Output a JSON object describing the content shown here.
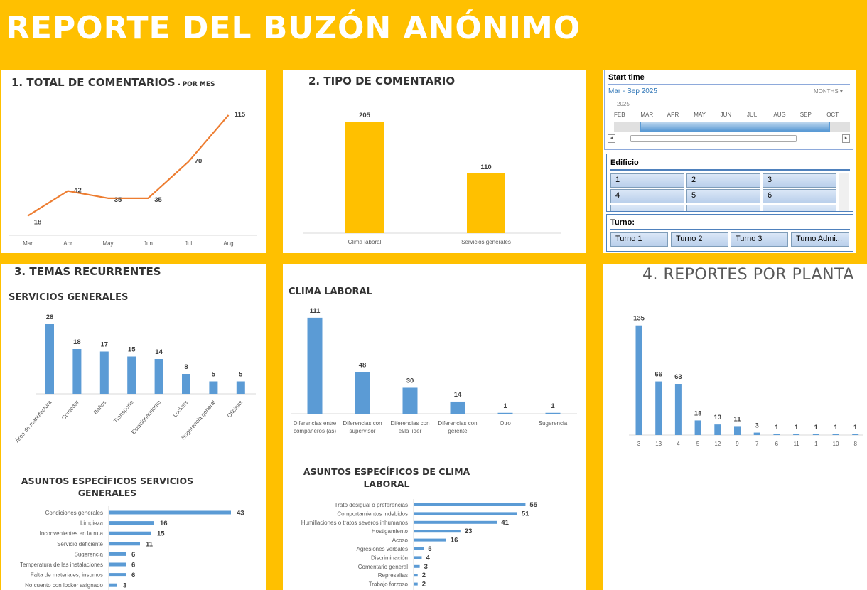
{
  "header": {
    "title": "REPORTE DEL BUZÓN ANÓNIMO"
  },
  "sections": {
    "s1_title": "1. TOTAL DE COMENTARIOS",
    "s1_sub": " - POR MES",
    "s2_title": "2. TIPO DE COMENTARIO",
    "s3_title": "3. TEMAS RECURRENTES",
    "s3_sub1": "SERVICIOS GENERALES",
    "s3_sub2": "CLIMA LABORAL",
    "s4_title": "4. REPORTES POR PLANTA",
    "s5_title1": "ASUNTOS ESPECÍFICOS SERVICIOS",
    "s5_title2": "GENERALES",
    "s6_title1": "ASUNTOS ESPECÍFICOS DE CLIMA",
    "s6_title2": "LABORAL"
  },
  "slicers": {
    "timeline": {
      "title": "Start time",
      "range": "Mar - Sep 2025",
      "level": "MONTHS",
      "year": "2025",
      "months": [
        "FEB",
        "MAR",
        "APR",
        "MAY",
        "JUN",
        "JUL",
        "AUG",
        "SEP",
        "OCT"
      ]
    },
    "edificio": {
      "title": "Edificio",
      "items": [
        "1",
        "2",
        "3",
        "4",
        "5",
        "6"
      ]
    },
    "turno": {
      "title": "Turno:",
      "items": [
        "Turno 1",
        "Turno 2",
        "Turno 3",
        "Turno Admi..."
      ]
    }
  },
  "colors": {
    "accent": "#ffc000",
    "line": "#ed7d31",
    "bar_yellow": "#ffc000",
    "bar_blue": "#5b9bd5"
  },
  "chart_data": [
    {
      "id": "monthly",
      "type": "line",
      "title": "1. TOTAL DE COMENTARIOS - POR MES",
      "categories": [
        "Mar",
        "Apr",
        "May",
        "Jun",
        "Jul",
        "Aug"
      ],
      "values": [
        18,
        42,
        35,
        35,
        70,
        115
      ],
      "ylim": [
        0,
        130
      ]
    },
    {
      "id": "tipo",
      "type": "bar",
      "title": "2. TIPO DE COMENTARIO",
      "categories": [
        "Clima laboral",
        "Servicios generales"
      ],
      "values": [
        205,
        110
      ],
      "ylim": [
        0,
        230
      ]
    },
    {
      "id": "servicios",
      "type": "bar",
      "title": "SERVICIOS GENERALES",
      "categories": [
        "Área de manufactura",
        "Comedor",
        "Baños",
        "Transporte",
        "Estacionamiento",
        "Lockers",
        "Sugerencia general",
        "Oficinas"
      ],
      "values": [
        28,
        18,
        17,
        15,
        14,
        8,
        5,
        5
      ],
      "ylim": [
        0,
        30
      ]
    },
    {
      "id": "clima",
      "type": "bar",
      "title": "CLIMA LABORAL",
      "categories": [
        [
          "Diferencias entre",
          "compañeros (as)"
        ],
        [
          "Diferencias con",
          "supervisor"
        ],
        [
          "Diferencias con",
          "el/la líder"
        ],
        [
          "Diferencias con",
          "gerente"
        ],
        [
          "Otro"
        ],
        [
          "Sugerencia"
        ]
      ],
      "values": [
        111,
        48,
        30,
        14,
        1,
        1
      ],
      "ylim": [
        0,
        115
      ]
    },
    {
      "id": "planta",
      "type": "bar",
      "title": "4. REPORTES POR PLANTA",
      "categories": [
        "3",
        "13",
        "4",
        "5",
        "12",
        "9",
        "7",
        "6",
        "11",
        "1",
        "10",
        "8"
      ],
      "values": [
        135,
        66,
        63,
        18,
        13,
        11,
        3,
        1,
        1,
        1,
        1,
        1
      ],
      "ylim": [
        0,
        140
      ]
    },
    {
      "id": "asuntos_sg",
      "type": "bar-horizontal",
      "title": "ASUNTOS ESPECÍFICOS SERVICIOS GENERALES",
      "categories": [
        "Condiciones generales",
        "Limpieza",
        "Inconvenientes en la ruta",
        "Servicio deficiente",
        "Sugerencia",
        "Temperatura de las instalaciones",
        "Falta de materiales, insumos",
        "No cuento con locker asignado"
      ],
      "values": [
        43,
        16,
        15,
        11,
        6,
        6,
        6,
        3
      ],
      "xlim": [
        0,
        45
      ]
    },
    {
      "id": "asuntos_cl",
      "type": "bar-horizontal",
      "title": "ASUNTOS ESPECÍFICOS DE CLIMA LABORAL",
      "categories": [
        "Trato desigual o preferencias",
        "Comportamientos indebidos",
        "Humillaciones o tratos severos inhumanos",
        "Hostigamiento",
        "Acoso",
        "Agresiones verbales",
        "Discriminación",
        "Comentario general",
        "Represalias",
        "Trabajo forzoso"
      ],
      "values": [
        55,
        51,
        41,
        23,
        16,
        5,
        4,
        3,
        2,
        2
      ],
      "xlim": [
        0,
        58
      ]
    }
  ]
}
